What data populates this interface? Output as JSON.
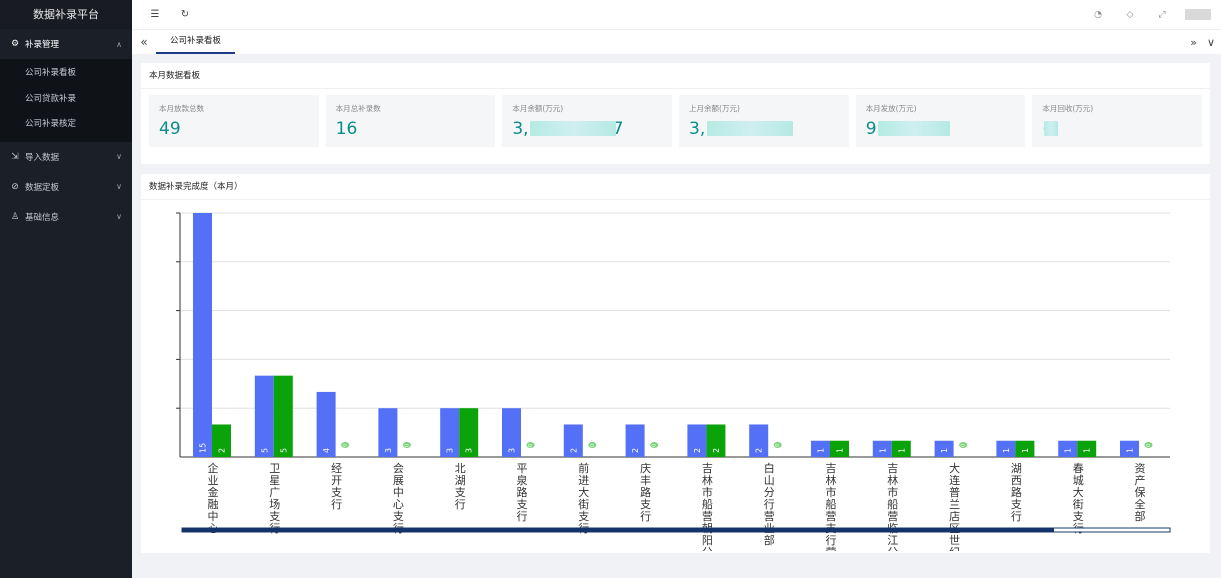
{
  "sidebar": {
    "brand": "数据补录平台",
    "groups": [
      {
        "label": "补录管理",
        "icon": "gear-icon",
        "items": [
          "公司补录看板",
          "公司贷款补录",
          "公司补录核定"
        ]
      },
      {
        "label": "导入数据",
        "icon": "import-icon"
      },
      {
        "label": "数据定板",
        "icon": "check-circle-icon"
      },
      {
        "label": "基础信息",
        "icon": "user-icon"
      }
    ]
  },
  "header": {
    "tabs": [
      "公司补录看板"
    ]
  },
  "summary": {
    "title": "本月数据看板",
    "cards": [
      {
        "label": "本月放款总数",
        "value": "49"
      },
      {
        "label": "本月总补录数",
        "value": "16"
      },
      {
        "label": "本月余额(万元)",
        "value": "3,",
        "tail": "7"
      },
      {
        "label": "上月余额(万元)",
        "value": "3,"
      },
      {
        "label": "本月发放(万元)",
        "value": "9"
      },
      {
        "label": "本月回收(万元)",
        "value": "("
      }
    ]
  },
  "chart_section": {
    "title": "数据补录完成度（本月）"
  },
  "chart_data": {
    "type": "bar",
    "categories": [
      "企业金融中心",
      "卫星广场支行",
      "经开支行",
      "会展中心支行",
      "北湖支行",
      "平泉路支行",
      "前进大街支行",
      "庆丰路支行",
      "吉林市船营朝阳分",
      "白山分行营业部",
      "吉林市船营支行营",
      "吉林市船营临江分",
      "大连普兰店区世纪",
      "湖西路支行",
      "春城大街支行",
      "资产保全部"
    ],
    "series": [
      {
        "values": [
          15,
          5,
          4,
          3,
          3,
          3,
          2,
          2,
          2,
          2,
          1,
          1,
          1,
          1,
          1,
          1
        ],
        "color": "#5470f6"
      },
      {
        "values": [
          2,
          5,
          0,
          0,
          3,
          0,
          0,
          0,
          2,
          0,
          1,
          1,
          0,
          1,
          1,
          0
        ],
        "color": "#0aa30a"
      }
    ],
    "ylim": [
      0,
      15
    ],
    "grid": true,
    "zero_marker_color": "#7ad37a"
  }
}
